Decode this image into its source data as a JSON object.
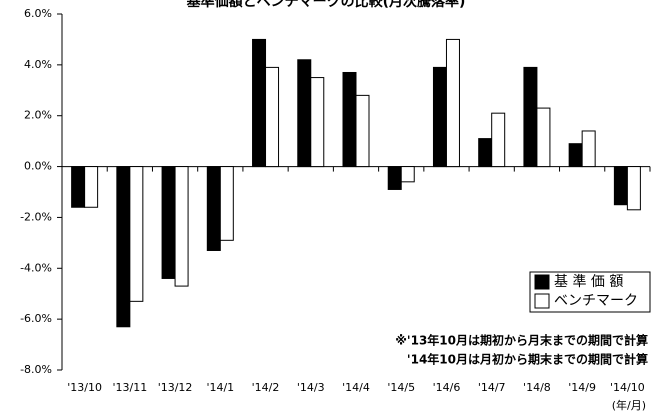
{
  "chart_data": {
    "type": "bar",
    "title": "基準価額とベンチマークの比較(月次騰落率)",
    "categories": [
      "'13/10",
      "'13/11",
      "'13/12",
      "'14/1",
      "'14/2",
      "'14/3",
      "'14/4",
      "'14/5",
      "'14/6",
      "'14/7",
      "'14/8",
      "'14/9",
      "'14/10"
    ],
    "series": [
      {
        "name": "基 準 価 額",
        "color": "#000000",
        "values": [
          -1.6,
          -6.3,
          -4.4,
          -3.3,
          5.0,
          4.2,
          3.7,
          -0.9,
          3.9,
          1.1,
          3.9,
          0.9,
          -1.5
        ]
      },
      {
        "name": "ベンチマーク",
        "color": "#ffffff",
        "values": [
          -1.6,
          -5.3,
          -4.7,
          -2.9,
          3.9,
          3.5,
          2.8,
          -0.6,
          5.0,
          2.1,
          2.3,
          1.4,
          -1.7
        ]
      }
    ],
    "ylim": [
      -8,
      6
    ],
    "yticks": [
      {
        "value": -8,
        "label": "-8.0%"
      },
      {
        "value": -6,
        "label": "-6.0%"
      },
      {
        "value": -4,
        "label": "-4.0%"
      },
      {
        "value": -2,
        "label": "-2.0%"
      },
      {
        "value": 0,
        "label": "0.0%"
      },
      {
        "value": 2,
        "label": "2.0%"
      },
      {
        "value": 4,
        "label": "4.0%"
      },
      {
        "value": 6,
        "label": "6.0%"
      }
    ],
    "x_label": "(年/月)",
    "legend": "lower right",
    "annotations": [
      "※'13年10月は期初から月末までの期間で計算",
      "'14年10月は月初から期末までの期間で計算"
    ]
  }
}
